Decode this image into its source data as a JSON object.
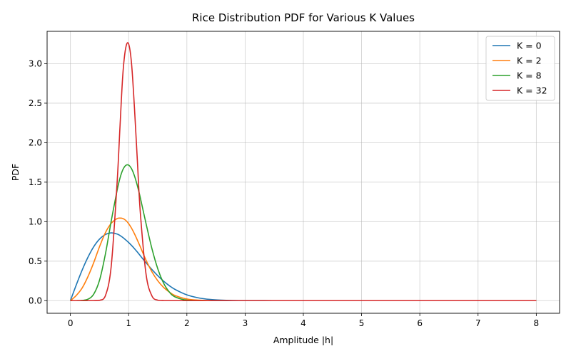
{
  "chart_data": {
    "type": "line",
    "title": "Rice Distribution PDF for Various K Values",
    "xlabel": "Amplitude |h|",
    "ylabel": "PDF",
    "xlim": [
      -0.4,
      8.4
    ],
    "ylim": [
      -0.16,
      3.41
    ],
    "x_ticks": [
      0,
      1,
      2,
      3,
      4,
      5,
      6,
      7,
      8
    ],
    "y_ticks": [
      0.0,
      0.5,
      1.0,
      1.5,
      2.0,
      2.5,
      3.0
    ],
    "x_tick_labels": [
      "0",
      "1",
      "2",
      "3",
      "4",
      "5",
      "6",
      "7",
      "8"
    ],
    "y_tick_labels": [
      "0.0",
      "0.5",
      "1.0",
      "1.5",
      "2.0",
      "2.5",
      "3.0"
    ],
    "grid": true,
    "legend_position": "top-right",
    "x": [
      0,
      0.1,
      0.2,
      0.3,
      0.4,
      0.5,
      0.6,
      0.7,
      0.8,
      0.85,
      0.9,
      0.95,
      1.0,
      1.05,
      1.1,
      1.15,
      1.2,
      1.3,
      1.4,
      1.5,
      1.6,
      1.7,
      1.8,
      2.0,
      2.2,
      2.4,
      2.6,
      2.8,
      3.0,
      3.5,
      4,
      5,
      6,
      7,
      8
    ],
    "series": [
      {
        "name": "K = 0",
        "color": "#1f77b4",
        "values": [
          0,
          0.198,
          0.384,
          0.548,
          0.682,
          0.779,
          0.837,
          0.858,
          0.844,
          0.826,
          0.8,
          0.769,
          0.736,
          0.699,
          0.658,
          0.615,
          0.569,
          0.479,
          0.394,
          0.316,
          0.247,
          0.189,
          0.141,
          0.073,
          0.035,
          0.015,
          0.006,
          0.0022,
          0.0007,
          3e-05,
          0,
          0,
          0,
          0,
          0
        ]
      },
      {
        "name": "K = 2",
        "color": "#ff7f0e",
        "values": [
          0,
          0.065,
          0.158,
          0.302,
          0.481,
          0.683,
          0.859,
          0.978,
          1.038,
          1.045,
          1.04,
          1.017,
          0.975,
          0.917,
          0.846,
          0.766,
          0.682,
          0.511,
          0.365,
          0.252,
          0.168,
          0.108,
          0.064,
          0.021,
          0.006,
          0.0015,
          0.0003,
          0,
          0,
          0,
          0,
          0,
          0,
          0,
          0
        ]
      },
      {
        "name": "K = 8",
        "color": "#2ca02c",
        "values": [
          0,
          0.0,
          0.003,
          0.018,
          0.082,
          0.258,
          0.586,
          1.004,
          1.39,
          1.548,
          1.657,
          1.712,
          1.716,
          1.67,
          1.58,
          1.455,
          1.305,
          0.972,
          0.659,
          0.405,
          0.222,
          0.108,
          0.046,
          0.006,
          0.0005,
          0,
          0,
          0,
          0,
          0,
          0,
          0,
          0,
          0,
          0
        ]
      },
      {
        "name": "K = 32",
        "color": "#d62728",
        "values": [
          0,
          0,
          0,
          0,
          0.0,
          0.004,
          0.06,
          0.43,
          1.47,
          2.18,
          2.86,
          3.2,
          3.25,
          3.0,
          2.44,
          1.77,
          1.12,
          0.33,
          0.06,
          0.006,
          0.0004,
          0,
          0,
          0,
          0,
          0,
          0,
          0,
          0,
          0,
          0,
          0,
          0,
          0,
          0
        ]
      }
    ]
  }
}
